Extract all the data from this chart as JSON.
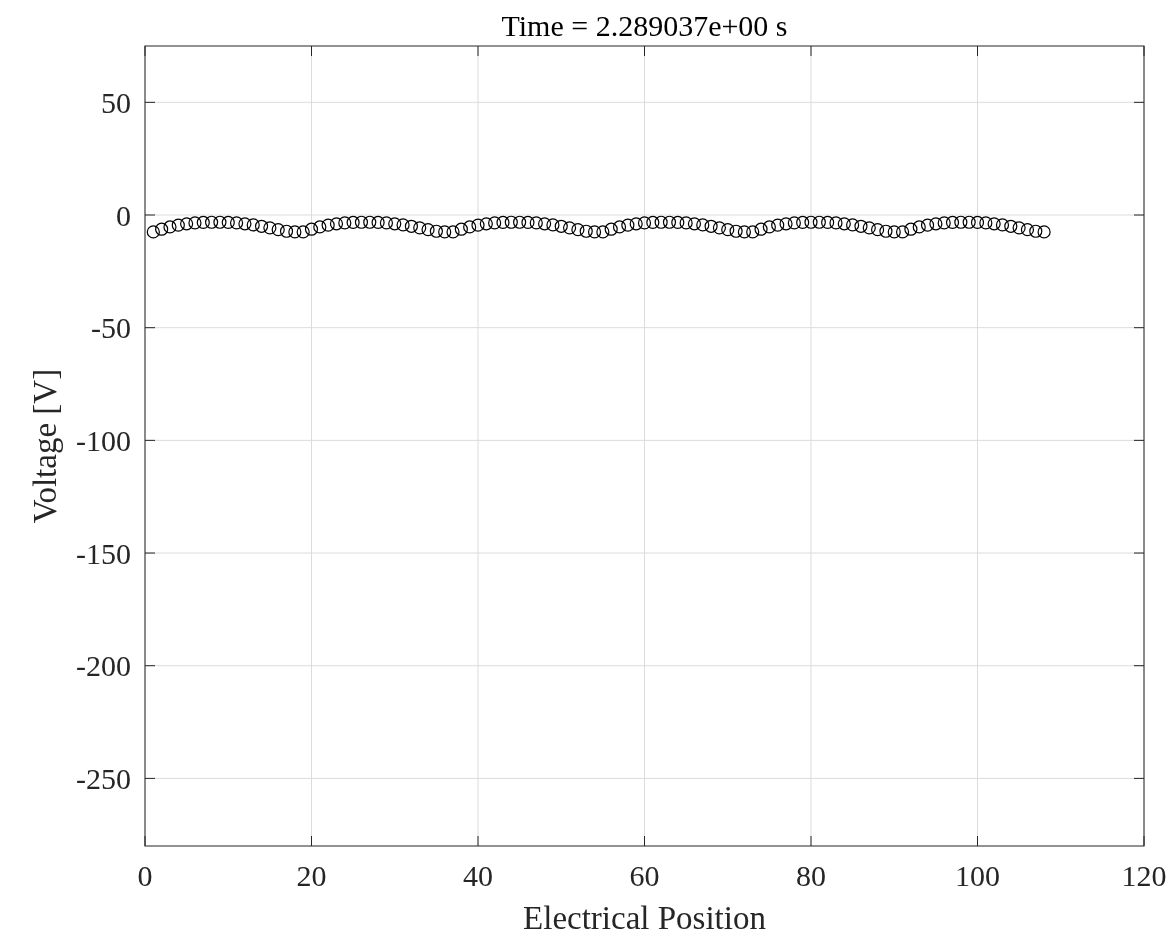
{
  "chart_data": {
    "type": "scatter",
    "title": "Time = 2.289037e+00 s",
    "xlabel": "Electrical Position",
    "ylabel": "Voltage [V]",
    "x": [
      1,
      2,
      3,
      4,
      5,
      6,
      7,
      8,
      9,
      10,
      11,
      12,
      13,
      14,
      15,
      16,
      17,
      18,
      19,
      20,
      21,
      22,
      23,
      24,
      25,
      26,
      27,
      28,
      29,
      30,
      31,
      32,
      33,
      34,
      35,
      36,
      37,
      38,
      39,
      40,
      41,
      42,
      43,
      44,
      45,
      46,
      47,
      48,
      49,
      50,
      51,
      52,
      53,
      54,
      55,
      56,
      57,
      58,
      59,
      60,
      61,
      62,
      63,
      64,
      65,
      66,
      67,
      68,
      69,
      70,
      71,
      72,
      73,
      74,
      75,
      76,
      77,
      78,
      79,
      80,
      81,
      82,
      83,
      84,
      85,
      86,
      87,
      88,
      89,
      90,
      91,
      92,
      93,
      94,
      95,
      96,
      97,
      98,
      99,
      100,
      101,
      102,
      103,
      104,
      105,
      106,
      107,
      108
    ],
    "series": [
      {
        "color": "#000000",
        "values": [
          -7.5,
          -6.3,
          -5.3,
          -4.5,
          -3.9,
          -3.5,
          -3.3,
          -3.2,
          -3.2,
          -3.3,
          -3.5,
          -3.9,
          -4.4,
          -5.0,
          -5.7,
          -6.5,
          -7.2,
          -7.5,
          -7.5,
          -6.3,
          -5.3,
          -4.5,
          -3.9,
          -3.5,
          -3.3,
          -3.2,
          -3.2,
          -3.3,
          -3.5,
          -3.9,
          -4.4,
          -5.0,
          -5.7,
          -6.5,
          -7.2,
          -7.5,
          -7.5,
          -6.3,
          -5.3,
          -4.5,
          -3.9,
          -3.5,
          -3.3,
          -3.2,
          -3.2,
          -3.3,
          -3.5,
          -3.9,
          -4.4,
          -5.0,
          -5.7,
          -6.5,
          -7.2,
          -7.5,
          -7.5,
          -6.3,
          -5.3,
          -4.5,
          -3.9,
          -3.5,
          -3.3,
          -3.2,
          -3.2,
          -3.3,
          -3.5,
          -3.9,
          -4.4,
          -5.0,
          -5.7,
          -6.5,
          -7.2,
          -7.5,
          -7.5,
          -6.3,
          -5.3,
          -4.5,
          -3.9,
          -3.5,
          -3.3,
          -3.2,
          -3.2,
          -3.3,
          -3.5,
          -3.9,
          -4.4,
          -5.0,
          -5.7,
          -6.5,
          -7.2,
          -7.5,
          -7.5,
          -6.3,
          -5.3,
          -4.5,
          -3.9,
          -3.5,
          -3.3,
          -3.2,
          -3.2,
          -3.3,
          -3.5,
          -3.9,
          -4.4,
          -5.0,
          -5.7,
          -6.5,
          -7.2,
          -7.5
        ]
      }
    ],
    "xlim": [
      0,
      120
    ],
    "xticks": [
      0,
      20,
      40,
      60,
      80,
      100,
      120
    ],
    "ylim": [
      -280,
      75
    ],
    "yticks": [
      -250,
      -200,
      -150,
      -100,
      -50,
      0,
      50
    ],
    "grid": true,
    "marker": "circle"
  }
}
